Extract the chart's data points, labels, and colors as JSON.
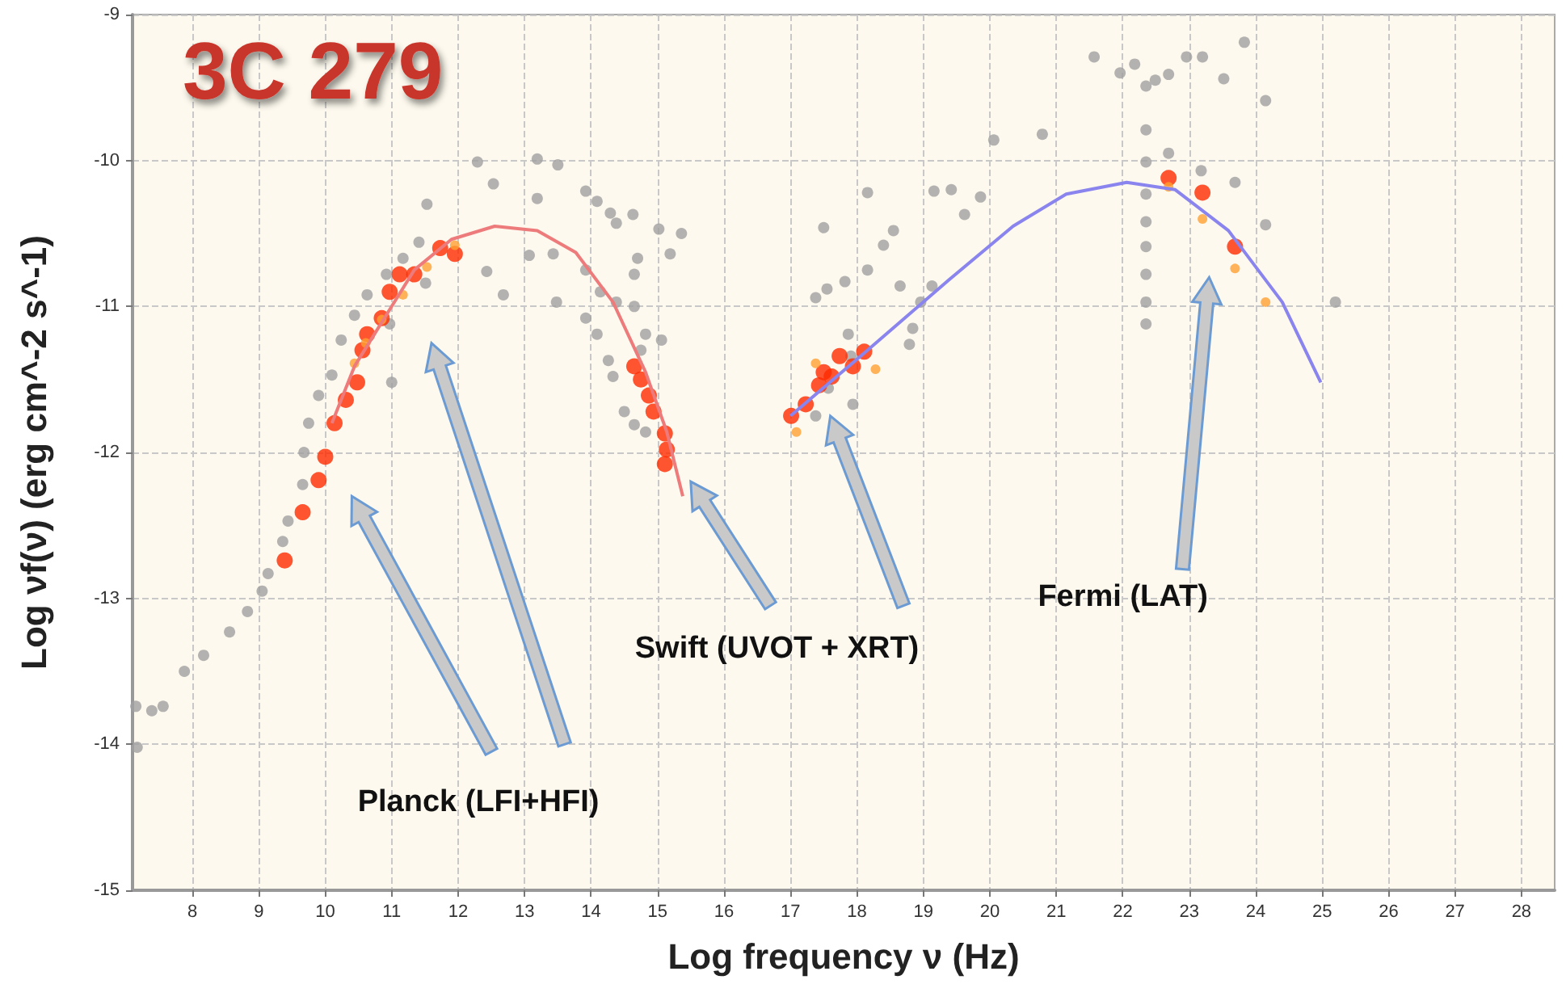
{
  "chart_data": {
    "type": "scatter",
    "title": "3C 279",
    "xlabel": "Log frequency ν (Hz)",
    "ylabel": "Log νf(ν) (erg cm^-2 s^-1)",
    "xlim": [
      7.1,
      28.5
    ],
    "ylim": [
      -15,
      -9
    ],
    "xticks": [
      8,
      9,
      10,
      11,
      12,
      13,
      14,
      15,
      16,
      17,
      18,
      19,
      20,
      21,
      22,
      23,
      24,
      25,
      26,
      27,
      28
    ],
    "yticks": [
      -15,
      -14,
      -13,
      -12,
      -11,
      -10,
      -9
    ],
    "grid": true,
    "marker": "circle",
    "annotations": [
      "Planck (LFI+HFI)",
      "Swift (UVOT + XRT)",
      "Fermi (LAT)"
    ],
    "series": [
      {
        "color": "#a0a0a0",
        "x": [
          7.15,
          7.39,
          7.56,
          7.17,
          7.88,
          8.17,
          8.56,
          8.83,
          9.05,
          9.14,
          9.36,
          9.44,
          9.66,
          9.68,
          9.75,
          9.9,
          10.1,
          10.24,
          10.44,
          10.63,
          10.92,
          11.17,
          11.41,
          11.51,
          10.97,
          11.0,
          12.29,
          12.53,
          11.53,
          13.19,
          13.5,
          13.19,
          13.92,
          14.09,
          14.29,
          14.38,
          14.63,
          15.02,
          15.36,
          15.19,
          14.7,
          14.65,
          14.65,
          14.82,
          15.06,
          14.75,
          14.14,
          14.38,
          13.92,
          14.09,
          14.26,
          14.33,
          14.65,
          14.82,
          14.5,
          12.43,
          13.07,
          13.92,
          13.43,
          12.68,
          13.48,
          17.38,
          17.55,
          17.82,
          18.16,
          18.4,
          18.55,
          18.16,
          17.5,
          18.65,
          18.84,
          18.96,
          19.13,
          17.87,
          17.91,
          17.57,
          17.38,
          17.94,
          18.79,
          19.16,
          19.42,
          19.62,
          19.86,
          20.06,
          20.79,
          21.57,
          21.96,
          22.18,
          22.35,
          22.49,
          22.69,
          22.96,
          23.2,
          23.52,
          23.83,
          24.15,
          22.35,
          22.35,
          22.35,
          22.35,
          22.35,
          22.35,
          22.35,
          22.35,
          22.69,
          23.18,
          23.69,
          24.15,
          25.2
        ],
        "values": [
          -13.74,
          -13.77,
          -13.74,
          -14.02,
          -13.5,
          -13.39,
          -13.23,
          -13.09,
          -12.95,
          -12.83,
          -12.61,
          -12.47,
          -12.22,
          -12.0,
          -11.8,
          -11.61,
          -11.47,
          -11.23,
          -11.06,
          -10.92,
          -10.78,
          -10.67,
          -10.56,
          -10.84,
          -11.12,
          -11.52,
          -10.01,
          -10.16,
          -10.3,
          -9.99,
          -10.03,
          -10.26,
          -10.21,
          -10.28,
          -10.36,
          -10.43,
          -10.37,
          -10.47,
          -10.5,
          -10.64,
          -10.67,
          -10.78,
          -11.0,
          -11.19,
          -11.23,
          -11.3,
          -10.9,
          -10.97,
          -11.08,
          -11.19,
          -11.37,
          -11.48,
          -11.81,
          -11.86,
          -11.72,
          -10.76,
          -10.65,
          -10.75,
          -10.64,
          -10.92,
          -10.97,
          -10.94,
          -10.88,
          -10.83,
          -10.75,
          -10.58,
          -10.48,
          -10.22,
          -10.46,
          -10.86,
          -11.15,
          -10.97,
          -10.86,
          -11.19,
          -11.34,
          -11.56,
          -11.75,
          -11.67,
          -11.26,
          -10.21,
          -10.2,
          -10.37,
          -10.25,
          -9.86,
          -9.82,
          -9.29,
          -9.4,
          -9.34,
          -9.49,
          -9.45,
          -9.41,
          -9.29,
          -9.29,
          -9.44,
          -9.19,
          -9.59,
          -9.79,
          -10.01,
          -10.23,
          -10.42,
          -10.59,
          -10.78,
          -10.97,
          -11.12,
          -9.95,
          -10.07,
          -10.15,
          -10.44,
          -10.97
        ]
      },
      {
        "type": "line",
        "marker": "none",
        "color": "#ee7b7b",
        "x": [
          10.1,
          10.44,
          11.34,
          11.9,
          12.55,
          13.19,
          13.77,
          14.33,
          14.82,
          15.14,
          15.38
        ],
        "values": [
          -11.8,
          -11.41,
          -10.75,
          -10.54,
          -10.45,
          -10.48,
          -10.63,
          -10.97,
          -11.45,
          -11.86,
          -12.3
        ]
      },
      {
        "type": "line",
        "marker": "none",
        "color": "#8a84ee",
        "x": [
          17.0,
          18.16,
          19.38,
          20.35,
          21.15,
          22.06,
          22.79,
          23.59,
          24.4,
          24.98
        ],
        "values": [
          -11.75,
          -11.3,
          -10.82,
          -10.45,
          -10.23,
          -10.15,
          -10.2,
          -10.48,
          -10.97,
          -11.52
        ]
      },
      {
        "type": "scatter",
        "color": "#ff2a00",
        "x": [
          9.39,
          9.66,
          9.9,
          10.0,
          10.14,
          10.31,
          10.48,
          10.56,
          10.63,
          10.85,
          10.97,
          11.12,
          11.34,
          11.73,
          11.95,
          14.65,
          14.75,
          14.87,
          14.94,
          15.11,
          15.14,
          15.11,
          17.01,
          17.23,
          17.43,
          17.5,
          17.62,
          17.74,
          17.94,
          18.11,
          22.69,
          23.2,
          23.69
        ],
        "values": [
          -12.74,
          -12.41,
          -12.19,
          -12.03,
          -11.8,
          -11.64,
          -11.52,
          -11.3,
          -11.19,
          -11.08,
          -10.9,
          -10.78,
          -10.78,
          -10.6,
          -10.64,
          -11.41,
          -11.5,
          -11.61,
          -11.72,
          -11.87,
          -11.98,
          -12.08,
          -11.75,
          -11.67,
          -11.54,
          -11.45,
          -11.48,
          -11.34,
          -11.41,
          -11.31,
          -10.12,
          -10.22,
          -10.59
        ]
      },
      {
        "type": "scatter",
        "color": "#ffa032",
        "x": [
          10.44,
          10.61,
          10.85,
          11.17,
          11.53,
          11.95,
          17.38,
          18.28,
          17.09,
          22.69,
          23.2,
          23.69,
          24.15
        ],
        "values": [
          -11.39,
          -11.25,
          -11.09,
          -10.92,
          -10.73,
          -10.58,
          -11.39,
          -11.43,
          -11.86,
          -10.18,
          -10.4,
          -10.74,
          -10.97
        ]
      }
    ]
  }
}
